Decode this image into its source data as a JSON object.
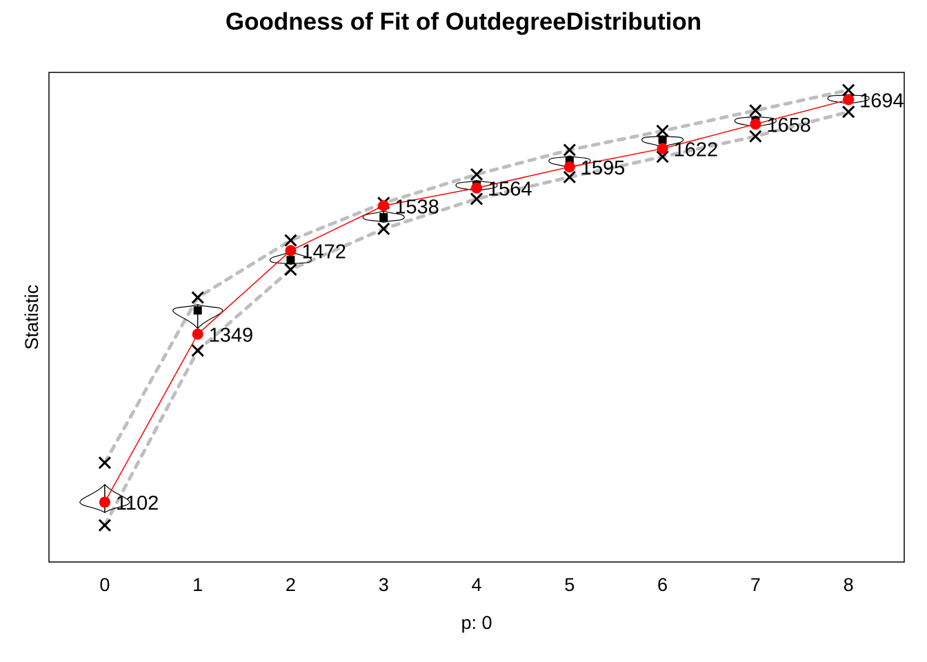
{
  "chart_data": {
    "type": "line",
    "title": "Goodness of Fit of OutdegreeDistribution",
    "xlabel": "p: 0",
    "ylabel": "Statistic",
    "x": [
      0,
      1,
      2,
      3,
      4,
      5,
      6,
      7,
      8
    ],
    "observed": {
      "values": [
        1102,
        1349,
        1472,
        1538,
        1564,
        1595,
        1622,
        1658,
        1694
      ],
      "color": "#ff0000"
    },
    "simulated_median": [
      1102,
      1384,
      1458,
      1521,
      1568,
      1604,
      1635,
      1663,
      1696
    ],
    "band_upper": [
      1160,
      1403,
      1487,
      1542,
      1584,
      1620,
      1648,
      1678,
      1708
    ],
    "band_lower": [
      1068,
      1325,
      1444,
      1504,
      1548,
      1580,
      1610,
      1640,
      1676
    ],
    "x_range": [
      -0.6,
      8.6
    ],
    "y_range": [
      1014,
      1734
    ],
    "grid": false,
    "band_color": "#bebebe",
    "violin_color": "#000000",
    "ticks_x": [
      "0",
      "1",
      "2",
      "3",
      "4",
      "5",
      "6",
      "7",
      "8"
    ],
    "y_ticks_shown": false
  }
}
